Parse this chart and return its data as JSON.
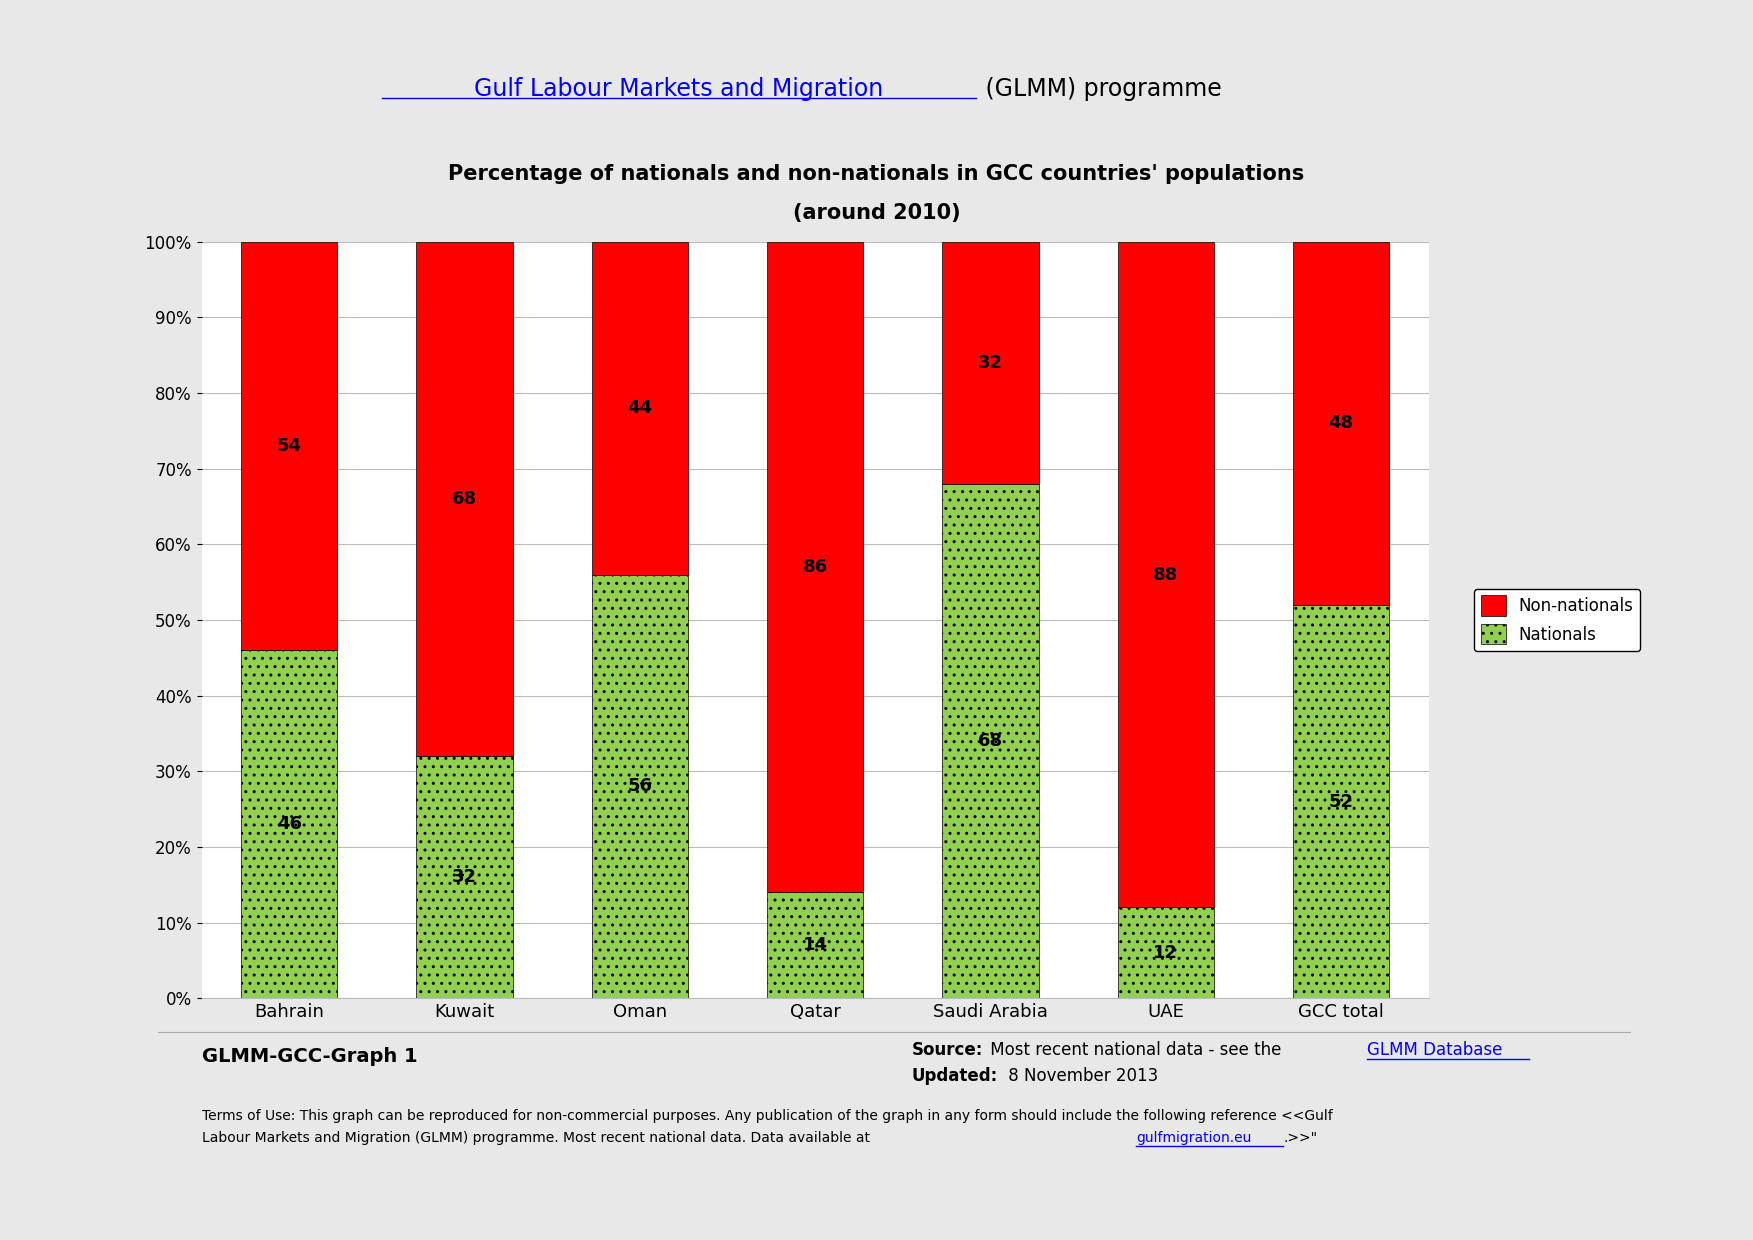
{
  "categories": [
    "Bahrain",
    "Kuwait",
    "Oman",
    "Qatar",
    "Saudi Arabia",
    "UAE",
    "GCC total"
  ],
  "nationals": [
    46,
    32,
    56,
    14,
    68,
    12,
    52
  ],
  "non_nationals": [
    54,
    68,
    44,
    86,
    32,
    88,
    48
  ],
  "nationals_color": "#92D050",
  "non_nationals_color": "#FF0000",
  "header_link_text": "Gulf Labour Markets and Migration",
  "header_rest_text": " (GLMM) programme",
  "chart_title_line1": "Percentage of nationals and non-nationals in GCC countries' populations",
  "chart_title_line2": "(around 2010)",
  "legend_non_nationals": "Non-nationals",
  "legend_nationals": "Nationals",
  "footer_label": "GLMM-GCC-Graph 1",
  "source_bold": "Source:",
  "source_text": " Most recent national data - see the ",
  "source_link": "GLMM Database",
  "updated_bold": "Updated:",
  "updated_text": " 8 November 2013",
  "terms_line1": "Terms of Use: This graph can be reproduced for non-commercial purposes. Any publication of the graph in any form should include the following reference <<Gulf",
  "terms_line2_pre": "Labour Markets and Migration (GLMM) programme. Most recent national data. Data available at ",
  "terms_link": "gulfmigration.eu",
  "terms_line2_post": ".>>\"",
  "background_color": "#E8E8E8",
  "card_color": "#FFFFFF",
  "border_color": "#AAAAAA"
}
